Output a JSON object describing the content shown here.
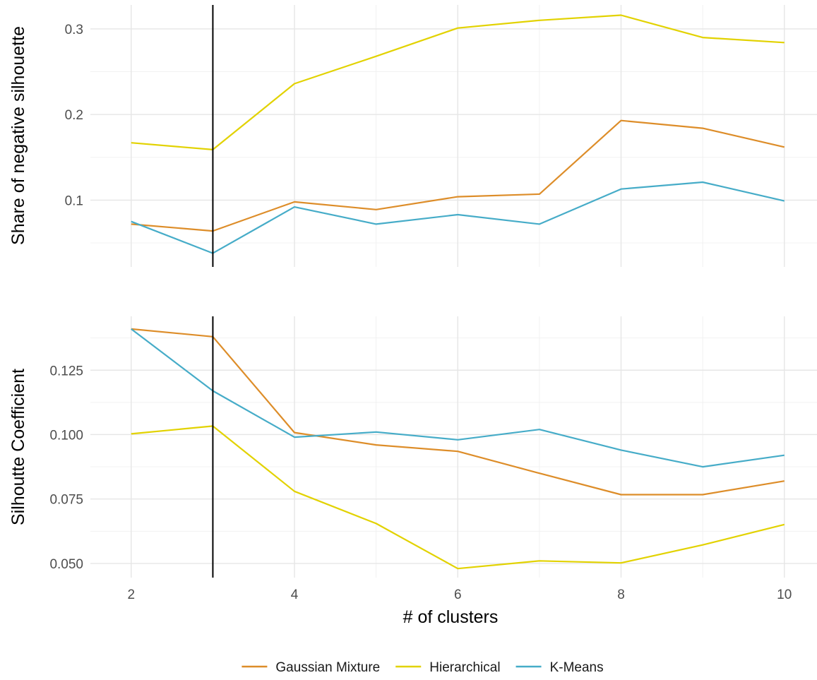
{
  "chart_data": {
    "type": "line",
    "xlabel": "# of clusters",
    "x": [
      2,
      3,
      4,
      5,
      6,
      7,
      8,
      9,
      10
    ],
    "xlim": [
      1.5,
      10.4
    ],
    "x_ticks": [
      2,
      4,
      6,
      8,
      10
    ],
    "x_tick_labels": [
      "2",
      "4",
      "6",
      "8",
      "10"
    ],
    "vline": 3,
    "legend": {
      "position": "bottom",
      "entries": [
        "Gaussian Mixture",
        "Hierarchical",
        "K-Means"
      ]
    },
    "colors": {
      "Gaussian Mixture": "#dd8d29",
      "Hierarchical": "#e2d200",
      "K-Means": "#46acc8"
    },
    "grid": true,
    "panels": [
      {
        "ylabel": "Share of negative silhouette",
        "ylim": [
          0.022,
          0.328
        ],
        "y_ticks": [
          0.1,
          0.2,
          0.3
        ],
        "y_tick_labels": [
          "0.1",
          "0.2",
          "0.3"
        ],
        "y_minor": [
          0.05,
          0.15,
          0.25
        ],
        "series": [
          {
            "name": "Gaussian Mixture",
            "values": [
              0.072,
              0.064,
              0.098,
              0.089,
              0.104,
              0.107,
              0.193,
              0.184,
              0.162
            ]
          },
          {
            "name": "Hierarchical",
            "values": [
              0.167,
              0.159,
              0.236,
              0.268,
              0.301,
              0.31,
              0.316,
              0.29,
              0.284
            ]
          },
          {
            "name": "K-Means",
            "values": [
              0.075,
              0.038,
              0.092,
              0.072,
              0.083,
              0.072,
              0.113,
              0.121,
              0.099
            ]
          }
        ]
      },
      {
        "ylabel": "Silhoutte Coefficient",
        "ylim": [
          0.0445,
          0.1459
        ],
        "y_ticks": [
          0.05,
          0.075,
          0.1,
          0.125
        ],
        "y_tick_labels": [
          "0.050",
          "0.075",
          "0.100",
          "0.125"
        ],
        "y_minor": [
          0.0625,
          0.0875,
          0.1125,
          0.1375
        ],
        "series": [
          {
            "name": "Gaussian Mixture",
            "values": [
              0.141,
              0.138,
              0.1008,
              0.096,
              0.0935,
              0.085,
              0.0767,
              0.0767,
              0.082
            ]
          },
          {
            "name": "Hierarchical",
            "values": [
              0.1003,
              0.1033,
              0.078,
              0.0655,
              0.048,
              0.051,
              0.0502,
              0.0572,
              0.0651
            ]
          },
          {
            "name": "K-Means",
            "values": [
              0.141,
              0.117,
              0.099,
              0.101,
              0.098,
              0.102,
              0.094,
              0.0875,
              0.092
            ]
          }
        ]
      }
    ]
  }
}
